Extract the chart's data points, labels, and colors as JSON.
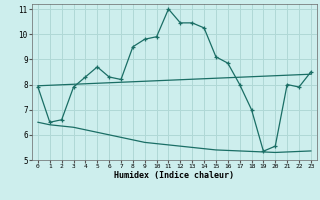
{
  "xlabel": "Humidex (Indice chaleur)",
  "bg_color": "#cdeeed",
  "grid_color": "#b0d8d6",
  "line_color": "#1a6e65",
  "x_main": [
    0,
    1,
    2,
    3,
    4,
    5,
    6,
    7,
    8,
    9,
    10,
    11,
    12,
    13,
    14,
    15,
    16,
    17,
    18,
    19,
    20,
    21,
    22,
    23
  ],
  "y_main": [
    7.9,
    6.5,
    6.6,
    7.9,
    8.3,
    8.7,
    8.3,
    8.2,
    9.5,
    9.8,
    9.9,
    11.0,
    10.45,
    10.45,
    10.25,
    9.1,
    8.85,
    8.0,
    7.0,
    5.35,
    5.55,
    8.0,
    7.9,
    8.5
  ],
  "y_upper": [
    7.95,
    7.97,
    7.99,
    8.01,
    8.03,
    8.05,
    8.07,
    8.09,
    8.11,
    8.13,
    8.15,
    8.17,
    8.19,
    8.21,
    8.23,
    8.25,
    8.27,
    8.29,
    8.31,
    8.33,
    8.35,
    8.37,
    8.39,
    8.41
  ],
  "y_lower": [
    6.5,
    6.4,
    6.35,
    6.3,
    6.2,
    6.1,
    6.0,
    5.9,
    5.8,
    5.7,
    5.65,
    5.6,
    5.55,
    5.5,
    5.45,
    5.4,
    5.38,
    5.36,
    5.34,
    5.32,
    5.3,
    5.32,
    5.34,
    5.36
  ],
  "ylim": [
    5,
    11.2
  ],
  "yticks": [
    5,
    6,
    7,
    8,
    9,
    10,
    11
  ],
  "xticks": [
    0,
    1,
    2,
    3,
    4,
    5,
    6,
    7,
    8,
    9,
    10,
    11,
    12,
    13,
    14,
    15,
    16,
    17,
    18,
    19,
    20,
    21,
    22,
    23
  ],
  "xlim": [
    -0.5,
    23.5
  ]
}
